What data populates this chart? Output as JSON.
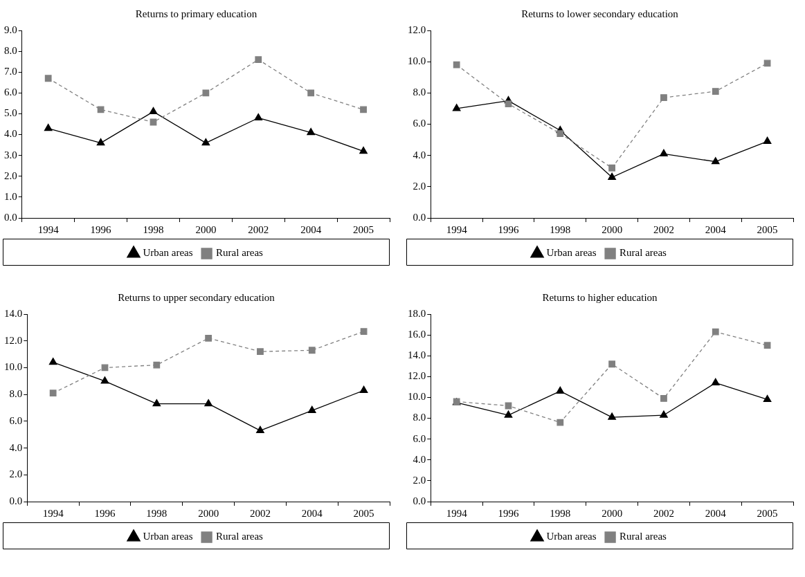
{
  "chart_data": [
    {
      "type": "line",
      "title": "Returns to primary education",
      "categories": [
        "1994",
        "1996",
        "1998",
        "2000",
        "2002",
        "2004",
        "2005"
      ],
      "ylim": [
        0,
        9
      ],
      "yticks": [
        {
          "value": 0,
          "label": "0.0"
        },
        {
          "value": 1,
          "label": "1.0"
        },
        {
          "value": 2,
          "label": "2.0"
        },
        {
          "value": 3,
          "label": "3.0"
        },
        {
          "value": 4,
          "label": "4.0"
        },
        {
          "value": 5,
          "label": "5.0"
        },
        {
          "value": 6,
          "label": "6.0"
        },
        {
          "value": 7,
          "label": "7.0"
        },
        {
          "value": 8,
          "label": "8.0"
        },
        {
          "value": 9,
          "label": "9.0"
        }
      ],
      "grid": false,
      "legend": "bottom",
      "series": [
        {
          "name": "Urban areas",
          "color": "#000000",
          "marker": "triangle",
          "line_style": "solid",
          "values": [
            4.3,
            3.6,
            5.1,
            3.6,
            4.8,
            4.1,
            3.2
          ]
        },
        {
          "name": "Rural areas",
          "color": "#808080",
          "marker": "square",
          "line_style": "dashed",
          "values": [
            6.7,
            5.2,
            4.6,
            6.0,
            7.6,
            6.0,
            5.2
          ]
        }
      ]
    },
    {
      "type": "line",
      "title": "Returns to lower secondary education",
      "categories": [
        "1994",
        "1996",
        "1998",
        "2000",
        "2002",
        "2004",
        "2005"
      ],
      "ylim": [
        0,
        12
      ],
      "yticks": [
        {
          "value": 0,
          "label": "0.0"
        },
        {
          "value": 2,
          "label": "2.0"
        },
        {
          "value": 4,
          "label": "4.0"
        },
        {
          "value": 6,
          "label": "6.0"
        },
        {
          "value": 8,
          "label": "8.0"
        },
        {
          "value": 10,
          "label": "10.0"
        },
        {
          "value": 12,
          "label": "12.0"
        }
      ],
      "grid": false,
      "legend": "bottom",
      "series": [
        {
          "name": "Urban areas",
          "color": "#000000",
          "marker": "triangle",
          "line_style": "solid",
          "values": [
            7.0,
            7.5,
            5.6,
            2.6,
            4.1,
            3.6,
            4.9
          ]
        },
        {
          "name": "Rural areas",
          "color": "#808080",
          "marker": "square",
          "line_style": "dashed",
          "values": [
            9.8,
            7.3,
            5.4,
            3.2,
            7.7,
            8.1,
            9.9
          ]
        }
      ]
    },
    {
      "type": "line",
      "title": "Returns to upper secondary education",
      "categories": [
        "1994",
        "1996",
        "1998",
        "2000",
        "2002",
        "2004",
        "2005"
      ],
      "ylim": [
        0,
        14
      ],
      "yticks": [
        {
          "value": 0,
          "label": "0.0"
        },
        {
          "value": 2,
          "label": "2.0"
        },
        {
          "value": 4,
          "label": "4.0"
        },
        {
          "value": 6,
          "label": "6.0"
        },
        {
          "value": 8,
          "label": "8.0"
        },
        {
          "value": 10,
          "label": "10.0"
        },
        {
          "value": 12,
          "label": "12.0"
        },
        {
          "value": 14,
          "label": "14.0"
        }
      ],
      "grid": false,
      "legend": "bottom",
      "series": [
        {
          "name": "Urban areas",
          "color": "#000000",
          "marker": "triangle",
          "line_style": "solid",
          "values": [
            10.4,
            9.0,
            7.3,
            7.3,
            5.3,
            6.8,
            8.3
          ]
        },
        {
          "name": "Rural areas",
          "color": "#808080",
          "marker": "square",
          "line_style": "dashed",
          "values": [
            8.1,
            10.0,
            10.2,
            12.2,
            11.2,
            11.3,
            12.7
          ]
        }
      ]
    },
    {
      "type": "line",
      "title": "Returns to higher education",
      "categories": [
        "1994",
        "1996",
        "1998",
        "2000",
        "2002",
        "2004",
        "2005"
      ],
      "ylim": [
        0,
        18
      ],
      "yticks": [
        {
          "value": 0,
          "label": "0.0"
        },
        {
          "value": 2,
          "label": "2.0"
        },
        {
          "value": 4,
          "label": "4.0"
        },
        {
          "value": 6,
          "label": "6.0"
        },
        {
          "value": 8,
          "label": "8.0"
        },
        {
          "value": 10,
          "label": "10.0"
        },
        {
          "value": 12,
          "label": "12.0"
        },
        {
          "value": 14,
          "label": "14.0"
        },
        {
          "value": 16,
          "label": "16.0"
        },
        {
          "value": 18,
          "label": "18.0"
        }
      ],
      "grid": false,
      "legend": "bottom",
      "series": [
        {
          "name": "Urban areas",
          "color": "#000000",
          "marker": "triangle",
          "line_style": "solid",
          "values": [
            9.5,
            8.3,
            10.6,
            8.1,
            8.3,
            11.4,
            9.8
          ]
        },
        {
          "name": "Rural areas",
          "color": "#808080",
          "marker": "square",
          "line_style": "dashed",
          "values": [
            9.6,
            9.2,
            7.6,
            13.2,
            9.9,
            16.3,
            15.0
          ]
        }
      ]
    }
  ]
}
